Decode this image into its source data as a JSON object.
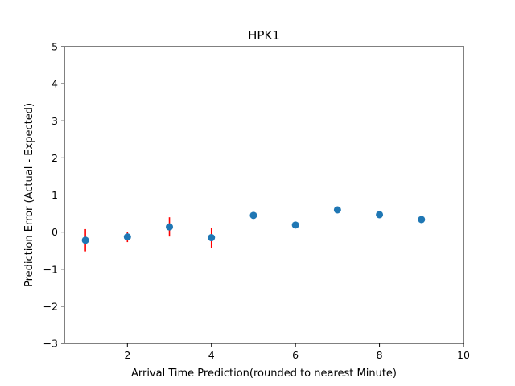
{
  "chart_data": {
    "type": "scatter",
    "title": "HPK1",
    "xlabel": "Arrival Time Prediction(rounded to nearest Minute)",
    "ylabel": "Prediction Error (Actual - Expected)",
    "xlim": [
      0.5,
      10
    ],
    "ylim": [
      -3,
      5
    ],
    "xticks": [
      2,
      4,
      6,
      8,
      10
    ],
    "yticks": [
      -3,
      -2,
      -1,
      0,
      1,
      2,
      3,
      4,
      5
    ],
    "xtick_labels": [
      "2",
      "4",
      "6",
      "8",
      "10"
    ],
    "ytick_labels": [
      "−3",
      "−2",
      "−1",
      "0",
      "1",
      "2",
      "3",
      "4",
      "5"
    ],
    "grid": false,
    "points": [
      {
        "x": 1,
        "y": -0.22,
        "err_low": -0.52,
        "err_high": 0.08
      },
      {
        "x": 2,
        "y": -0.13,
        "err_low": -0.27,
        "err_high": 0.01
      },
      {
        "x": 3,
        "y": 0.14,
        "err_low": -0.12,
        "err_high": 0.4
      },
      {
        "x": 4,
        "y": -0.15,
        "err_low": -0.43,
        "err_high": 0.12
      },
      {
        "x": 5,
        "y": 0.45
      },
      {
        "x": 6,
        "y": 0.19
      },
      {
        "x": 7,
        "y": 0.6
      },
      {
        "x": 8,
        "y": 0.47
      },
      {
        "x": 9,
        "y": 0.34
      }
    ],
    "marker_color": "#1f77b4",
    "error_color": "#ff0000"
  }
}
